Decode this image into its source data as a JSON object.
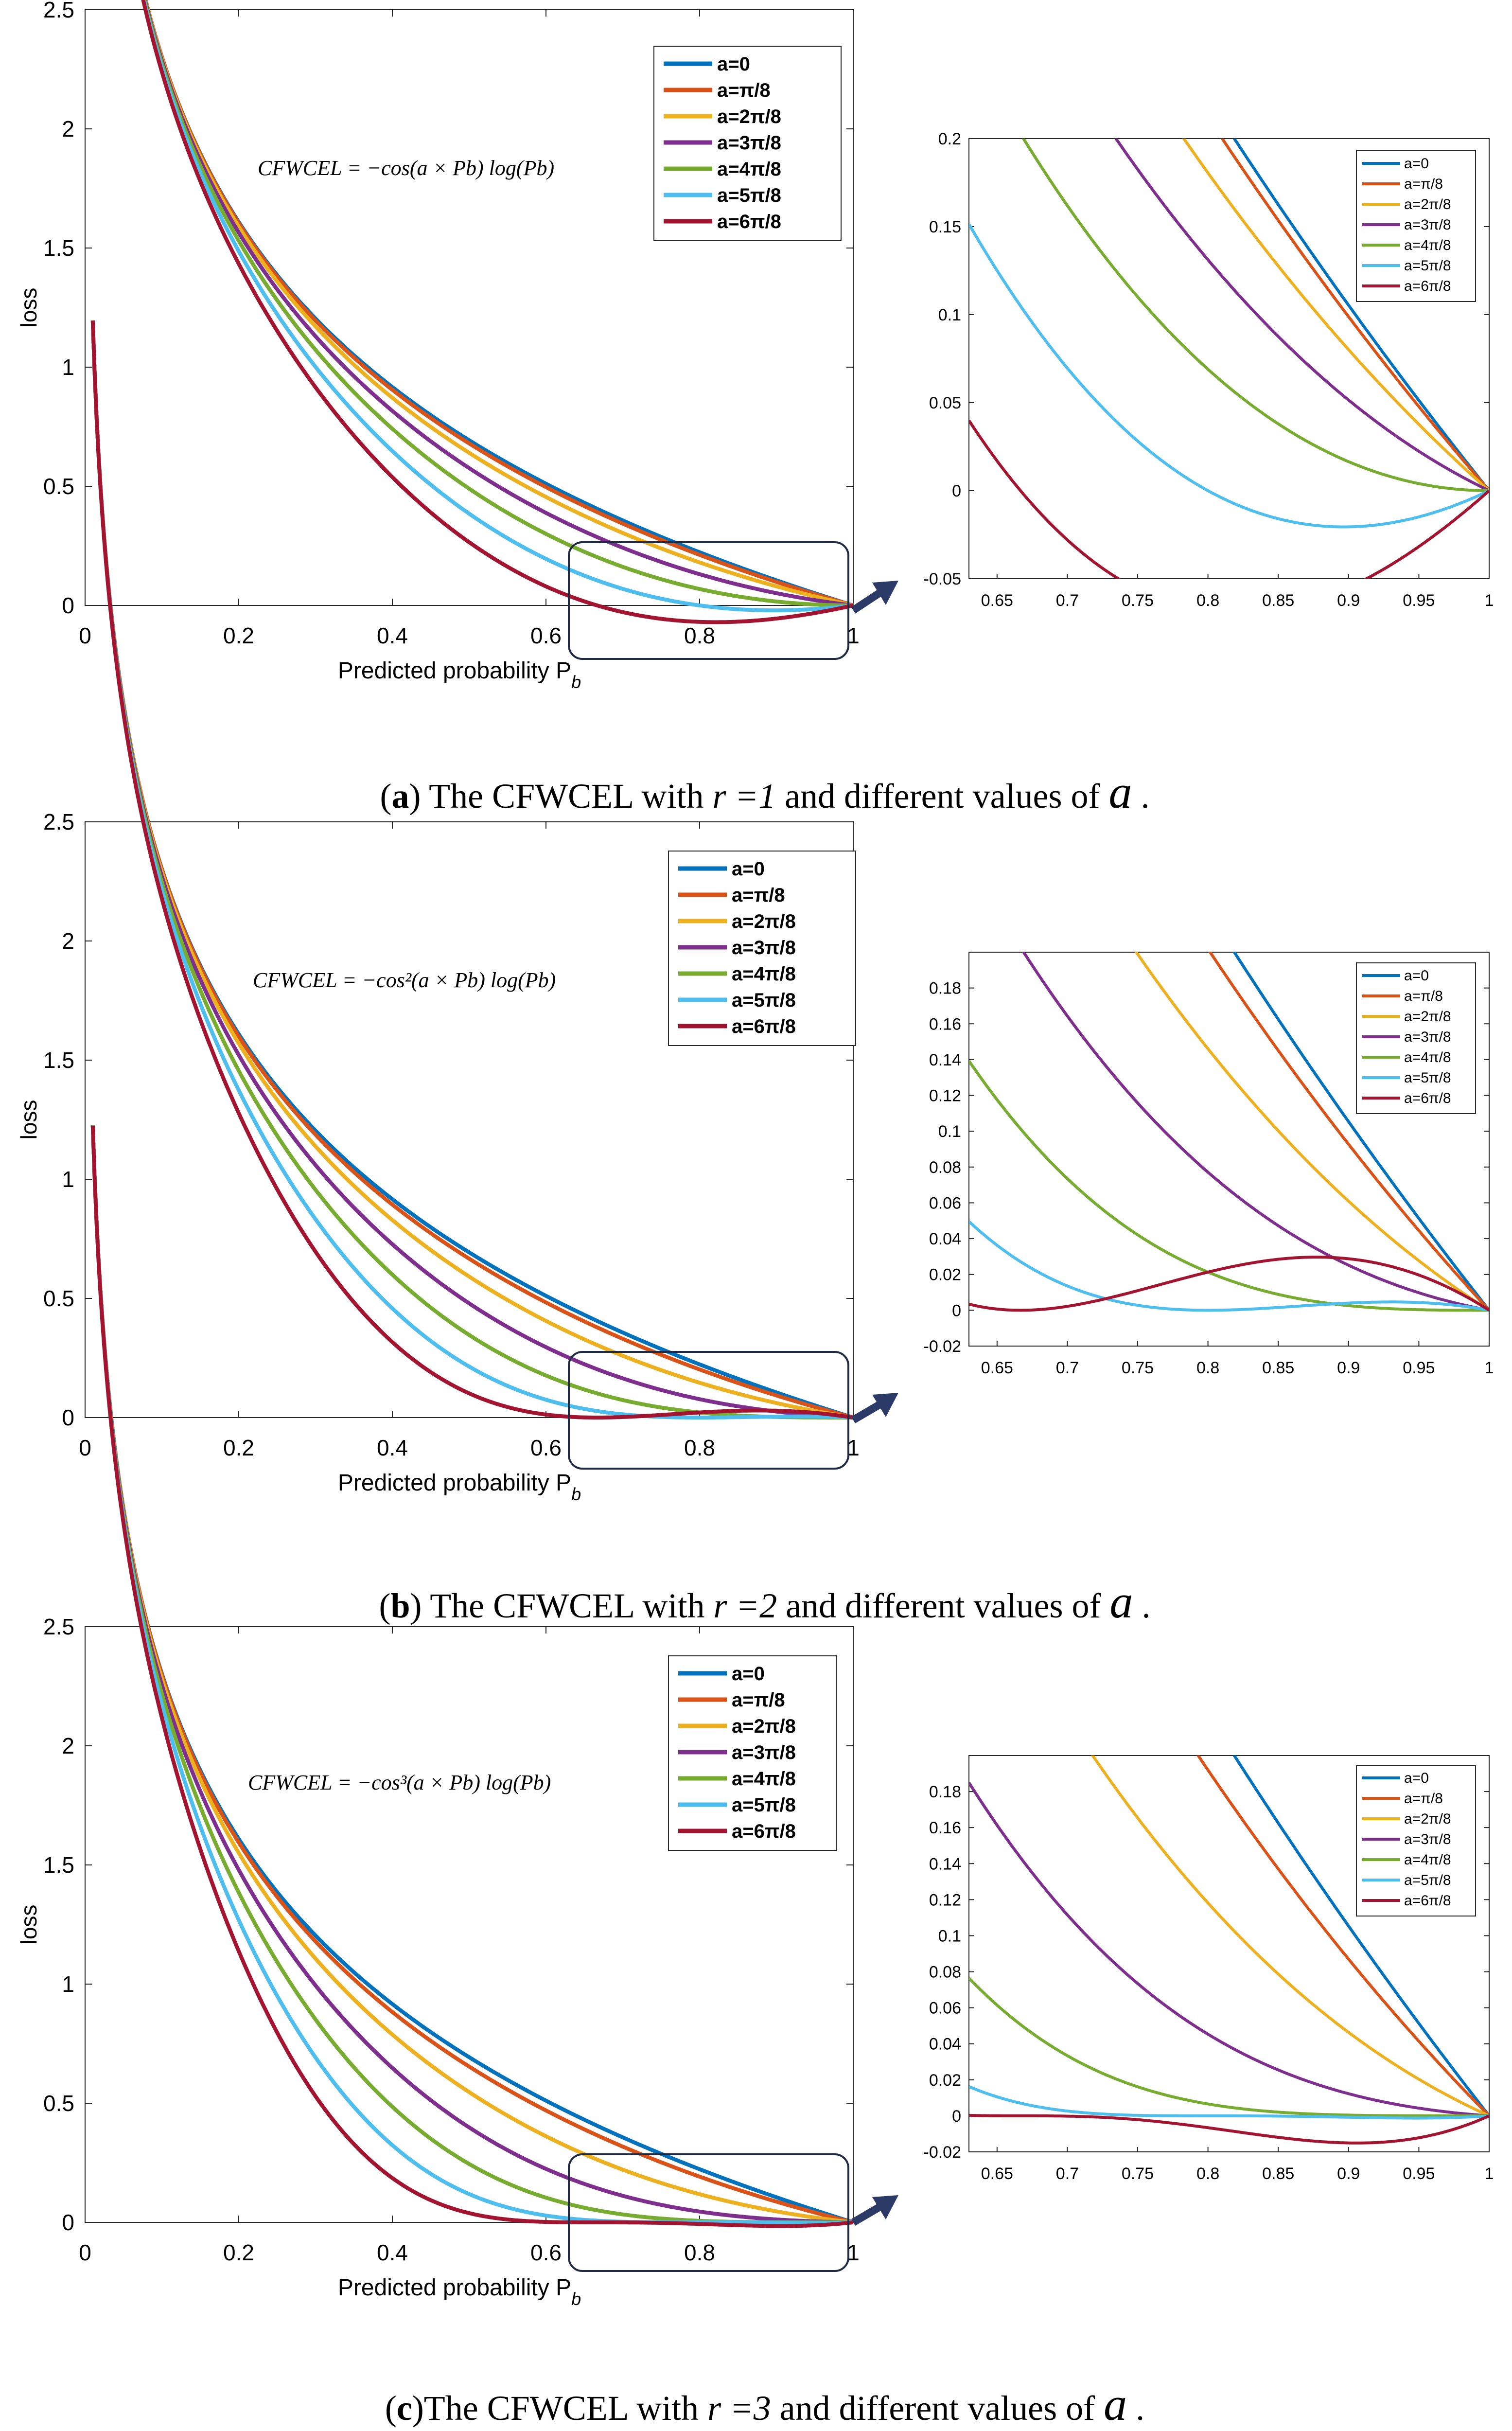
{
  "colors": {
    "a0": "#0072BD",
    "a1": "#D95319",
    "a2": "#EDB120",
    "a3": "#7E2F8E",
    "a4": "#77AC30",
    "a5": "#4DBEEE",
    "a6": "#A2142F",
    "box": "#1f2a44"
  },
  "legend_labels": [
    "a=0",
    "a=π/8",
    "a=2π/8",
    "a=3π/8",
    "a=4π/8",
    "a=5π/8",
    "a=6π/8"
  ],
  "panels": [
    {
      "caption": {
        "prefix": "(",
        "letter": "a",
        "mid": ") The CFWCEL with ",
        "eq": "r =1",
        "tail": " and different values of ",
        "sym": "a",
        "end": " ."
      },
      "formula": {
        "lhs": "CFWCEL = −cos",
        "body": "(a × P",
        "sub": "b",
        ")": ")",
        "rest": ") log(P"
      },
      "formula_text": "CFWCEL = −cos(a × Pb) log(Pb)",
      "main_ylabel": "loss",
      "main_xlabel": "Predicted probability P",
      "main_xlabel_sub": "b",
      "main_yticks": [
        "0",
        "0.5",
        "1",
        "1.5",
        "2",
        "2.5"
      ],
      "main_xticks": [
        "0",
        "0.2",
        "0.4",
        "0.6",
        "0.8",
        "1"
      ],
      "zoom_yticks": [
        "-0.05",
        "0",
        "0.05",
        "0.1",
        "0.15",
        "0.2"
      ],
      "zoom_xticks": [
        "0.65",
        "0.7",
        "0.75",
        "0.8",
        "0.85",
        "0.9",
        "0.95",
        "1"
      ]
    },
    {
      "caption": {
        "prefix": "(",
        "letter": "b",
        "mid": ") The CFWCEL with ",
        "eq": "r =2",
        "tail": " and different values of ",
        "sym": "a",
        "end": " ."
      },
      "formula_text": "CFWCEL = −cos²(a × Pb) log(Pb)",
      "main_ylabel": "loss",
      "main_xlabel": "Predicted probability P",
      "main_xlabel_sub": "b",
      "main_yticks": [
        "0",
        "0.5",
        "1",
        "1.5",
        "2",
        "2.5"
      ],
      "main_xticks": [
        "0",
        "0.2",
        "0.4",
        "0.6",
        "0.8",
        "1"
      ],
      "zoom_yticks": [
        "-0.02",
        "0",
        "0.02",
        "0.04",
        "0.06",
        "0.08",
        "0.1",
        "0.12",
        "0.14",
        "0.16",
        "0.18"
      ],
      "zoom_xticks": [
        "0.65",
        "0.7",
        "0.75",
        "0.8",
        "0.85",
        "0.9",
        "0.95",
        "1"
      ]
    },
    {
      "caption": {
        "prefix": "(",
        "letter": "c",
        "mid": ")The CFWCEL with ",
        "eq": "r =3",
        "tail": " and different values of ",
        "sym": "a",
        "end": " ."
      },
      "formula_text": "CFWCEL = −cos³(a × Pb) log(Pb)",
      "main_ylabel": "loss",
      "main_xlabel": "Predicted probability P",
      "main_xlabel_sub": "b",
      "main_yticks": [
        "0",
        "0.5",
        "1",
        "1.5",
        "2",
        "2.5"
      ],
      "main_xticks": [
        "0",
        "0.2",
        "0.4",
        "0.6",
        "0.8",
        "1"
      ],
      "zoom_yticks": [
        "-0.02",
        "0",
        "0.02",
        "0.04",
        "0.06",
        "0.08",
        "0.1",
        "0.12",
        "0.14",
        "0.16",
        "0.18"
      ],
      "zoom_xticks": [
        "0.65",
        "0.7",
        "0.75",
        "0.8",
        "0.85",
        "0.9",
        "0.95",
        "1"
      ]
    }
  ],
  "chart_data": [
    {
      "type": "line",
      "panel": "a",
      "r": 1,
      "xlim": [
        0,
        1
      ],
      "ylim": [
        0,
        2.5
      ],
      "x_range": [
        0.01,
        1
      ],
      "series": [
        {
          "name": "a=0",
          "a": 0
        },
        {
          "name": "a=π/8",
          "a": 0.3927
        },
        {
          "name": "a=2π/8",
          "a": 0.7854
        },
        {
          "name": "a=3π/8",
          "a": 1.1781
        },
        {
          "name": "a=4π/8",
          "a": 1.5708
        },
        {
          "name": "a=5π/8",
          "a": 1.9635
        },
        {
          "name": "a=6π/8",
          "a": 2.3562
        }
      ],
      "function": "loss = -cos(a*Pb)^r * ln(Pb)",
      "zoom": {
        "xlim": [
          0.63,
          1
        ],
        "ylim": [
          -0.05,
          0.2
        ]
      }
    },
    {
      "type": "line",
      "panel": "b",
      "r": 2,
      "xlim": [
        0,
        1
      ],
      "ylim": [
        0,
        2.5
      ],
      "x_range": [
        0.01,
        1
      ],
      "series": [
        {
          "name": "a=0",
          "a": 0
        },
        {
          "name": "a=π/8",
          "a": 0.3927
        },
        {
          "name": "a=2π/8",
          "a": 0.7854
        },
        {
          "name": "a=3π/8",
          "a": 1.1781
        },
        {
          "name": "a=4π/8",
          "a": 1.5708
        },
        {
          "name": "a=5π/8",
          "a": 1.9635
        },
        {
          "name": "a=6π/8",
          "a": 2.3562
        }
      ],
      "function": "loss = -cos(a*Pb)^r * ln(Pb)",
      "zoom": {
        "xlim": [
          0.63,
          1
        ],
        "ylim": [
          -0.02,
          0.2
        ]
      }
    },
    {
      "type": "line",
      "panel": "c",
      "r": 3,
      "xlim": [
        0,
        1
      ],
      "ylim": [
        0,
        2.5
      ],
      "x_range": [
        0.01,
        1
      ],
      "series": [
        {
          "name": "a=0",
          "a": 0
        },
        {
          "name": "a=π/8",
          "a": 0.3927
        },
        {
          "name": "a=2π/8",
          "a": 0.7854
        },
        {
          "name": "a=3π/8",
          "a": 1.1781
        },
        {
          "name": "a=4π/8",
          "a": 1.5708
        },
        {
          "name": "a=5π/8",
          "a": 1.9635
        },
        {
          "name": "a=6π/8",
          "a": 2.3562
        }
      ],
      "function": "loss = -cos(a*Pb)^r * ln(Pb)",
      "zoom": {
        "xlim": [
          0.63,
          1
        ],
        "ylim": [
          -0.02,
          0.2
        ]
      }
    }
  ]
}
